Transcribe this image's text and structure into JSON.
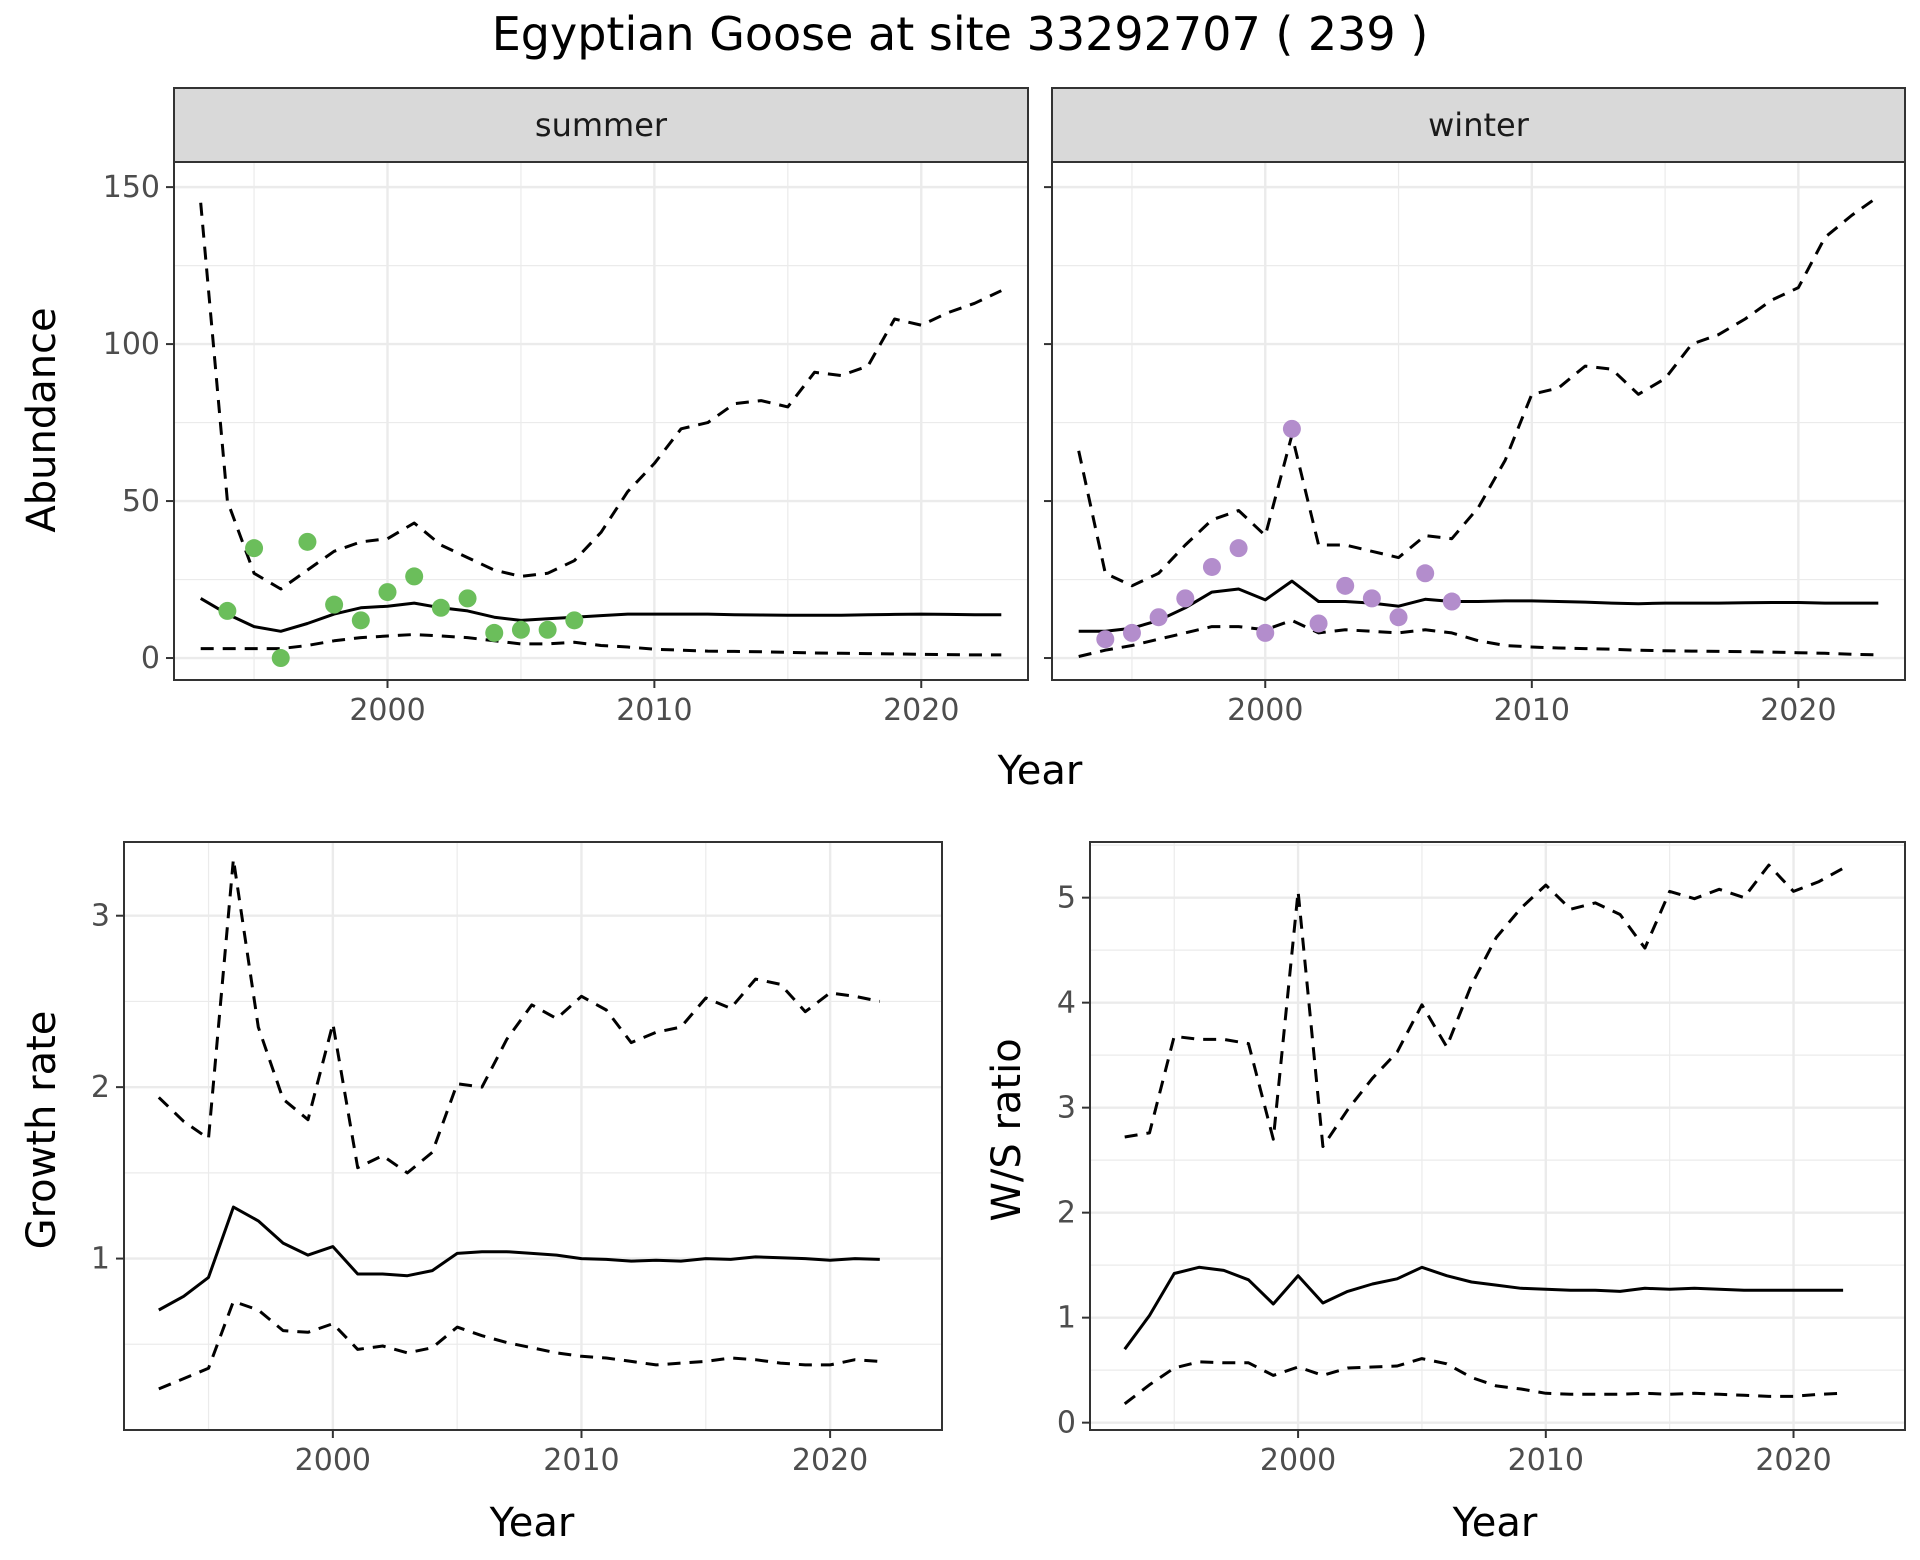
{
  "title": "Egyptian Goose at site 33292707 ( 239 )",
  "colors": {
    "summer_points": "#6BBE5B",
    "winter_points": "#B38DCC",
    "lines": "#000000",
    "grid": "#EBEBEB",
    "strip_bg": "#D9D9D9"
  },
  "chart_data": [
    {
      "type": "line",
      "facet": "summer",
      "xlabel": "Year",
      "ylabel": "Abundance",
      "xlim": [
        1992,
        2024
      ],
      "ylim": [
        -7,
        158
      ],
      "xticks": [
        2000,
        2010,
        2020
      ],
      "yticks": [
        0,
        50,
        100,
        150
      ],
      "series": [
        {
          "style": "solid",
          "x": [
            1993,
            1994,
            1995,
            1996,
            1997,
            1998,
            1999,
            2000,
            2001,
            2002,
            2003,
            2004,
            2005,
            2006,
            2007,
            2008,
            2009,
            2010,
            2011,
            2012,
            2013,
            2014,
            2015,
            2016,
            2017,
            2018,
            2019,
            2020,
            2021,
            2022,
            2023
          ],
          "values": [
            19,
            14,
            10,
            8.5,
            11,
            14,
            16,
            16.5,
            17.5,
            16,
            15,
            13,
            12,
            12.5,
            13,
            13.5,
            14,
            14,
            14,
            14,
            13.8,
            13.7,
            13.6,
            13.6,
            13.6,
            13.8,
            13.9,
            14,
            13.9,
            13.8,
            13.8
          ]
        },
        {
          "style": "dashed",
          "x": [
            1993,
            1994,
            1995,
            1996,
            1997,
            1998,
            1999,
            2000,
            2001,
            2002,
            2003,
            2004,
            2005,
            2006,
            2007,
            2008,
            2009,
            2010,
            2011,
            2012,
            2013,
            2014,
            2015,
            2016,
            2017,
            2018,
            2019,
            2020,
            2021,
            2022,
            2023
          ],
          "values": [
            145,
            50,
            27,
            22,
            28,
            34,
            37,
            38,
            43,
            36,
            32,
            28,
            26,
            27,
            31,
            40,
            53,
            62,
            73,
            75,
            81,
            82,
            80,
            91,
            90,
            93,
            108,
            106,
            110,
            113,
            117
          ]
        },
        {
          "style": "dashed",
          "x": [
            1993,
            1994,
            1995,
            1996,
            1997,
            1998,
            1999,
            2000,
            2001,
            2002,
            2003,
            2004,
            2005,
            2006,
            2007,
            2008,
            2009,
            2010,
            2011,
            2012,
            2013,
            2014,
            2015,
            2016,
            2017,
            2018,
            2019,
            2020,
            2021,
            2022,
            2023
          ],
          "values": [
            3,
            3,
            3,
            3,
            4,
            5.5,
            6.5,
            7,
            7.5,
            7,
            6.5,
            5.5,
            4.5,
            4.5,
            5,
            4,
            3.5,
            2.8,
            2.5,
            2.2,
            2.1,
            2,
            1.8,
            1.6,
            1.5,
            1.4,
            1.3,
            1.2,
            1.1,
            1,
            1
          ]
        }
      ],
      "points": {
        "x": [
          1994,
          1995,
          1996,
          1997,
          1998,
          1999,
          2000,
          2001,
          2002,
          2003,
          2004,
          2005,
          2006,
          2007
        ],
        "values": [
          15,
          35,
          0,
          37,
          17,
          12,
          21,
          26,
          16,
          19,
          8,
          9,
          9,
          12
        ]
      }
    },
    {
      "type": "line",
      "facet": "winter",
      "xlabel": "Year",
      "ylabel": "Abundance",
      "xlim": [
        1992,
        2024
      ],
      "ylim": [
        -7,
        158
      ],
      "xticks": [
        2000,
        2010,
        2020
      ],
      "yticks": [
        0,
        50,
        100,
        150
      ],
      "series": [
        {
          "style": "solid",
          "x": [
            1993,
            1994,
            1995,
            1996,
            1997,
            1998,
            1999,
            2000,
            2001,
            2002,
            2003,
            2004,
            2005,
            2006,
            2007,
            2008,
            2009,
            2010,
            2011,
            2012,
            2013,
            2014,
            2015,
            2016,
            2017,
            2018,
            2019,
            2020,
            2021,
            2022,
            2023
          ],
          "values": [
            8.5,
            8.5,
            9.5,
            12,
            16,
            21,
            22,
            18.5,
            24.5,
            18,
            18,
            17.5,
            16.5,
            18.7,
            18,
            18,
            18.2,
            18.2,
            18,
            17.8,
            17.5,
            17.3,
            17.5,
            17.5,
            17.5,
            17.6,
            17.7,
            17.7,
            17.5,
            17.5,
            17.5
          ]
        },
        {
          "style": "dashed",
          "x": [
            1993,
            1994,
            1995,
            1996,
            1997,
            1998,
            1999,
            2000,
            2001,
            2002,
            2003,
            2004,
            2005,
            2006,
            2007,
            2008,
            2009,
            2010,
            2011,
            2012,
            2013,
            2014,
            2015,
            2016,
            2017,
            2018,
            2019,
            2020,
            2021,
            2022,
            2023
          ],
          "values": [
            66,
            27,
            23,
            27,
            36,
            44,
            47,
            39,
            71,
            36,
            36,
            34,
            32,
            39,
            38,
            48,
            63,
            84,
            86,
            93,
            92,
            84,
            89,
            100,
            103,
            108,
            114,
            118,
            134,
            141,
            147
          ]
        },
        {
          "style": "dashed",
          "x": [
            1993,
            1994,
            1995,
            1996,
            1997,
            1998,
            1999,
            2000,
            2001,
            2002,
            2003,
            2004,
            2005,
            2006,
            2007,
            2008,
            2009,
            2010,
            2011,
            2012,
            2013,
            2014,
            2015,
            2016,
            2017,
            2018,
            2019,
            2020,
            2021,
            2022,
            2023
          ],
          "values": [
            0.5,
            2.5,
            4,
            6,
            8,
            10,
            10,
            9,
            12,
            8,
            9,
            8.5,
            8,
            9,
            8,
            5.5,
            4,
            3.5,
            3.2,
            3,
            2.8,
            2.5,
            2.3,
            2.2,
            2.1,
            2,
            1.9,
            1.7,
            1.5,
            1.2,
            1
          ]
        }
      ],
      "points": {
        "x": [
          1994,
          1995,
          1996,
          1997,
          1998,
          1999,
          2000,
          2001,
          2002,
          2003,
          2004,
          2005,
          2006,
          2007
        ],
        "values": [
          6,
          8,
          13,
          19,
          29,
          35,
          8,
          73,
          11,
          23,
          19,
          13,
          27,
          18
        ]
      }
    },
    {
      "type": "line",
      "xlabel": "Year",
      "ylabel": "Growth rate",
      "xlim": [
        1991.6,
        2024.5
      ],
      "ylim": [
        0.0,
        3.43
      ],
      "xticks": [
        2000,
        2010,
        2020
      ],
      "yticks": [
        1,
        2,
        3
      ],
      "series": [
        {
          "style": "solid",
          "x": [
            1993,
            1994,
            1995,
            1996,
            1997,
            1998,
            1999,
            2000,
            2001,
            2002,
            2003,
            2004,
            2005,
            2006,
            2007,
            2008,
            2009,
            2010,
            2011,
            2012,
            2013,
            2014,
            2015,
            2016,
            2017,
            2018,
            2019,
            2020,
            2021,
            2022
          ],
          "values": [
            0.7,
            0.78,
            0.89,
            1.3,
            1.22,
            1.09,
            1.02,
            1.07,
            0.91,
            0.91,
            0.9,
            0.93,
            1.03,
            1.04,
            1.04,
            1.03,
            1.02,
            1.0,
            0.995,
            0.985,
            0.99,
            0.985,
            1.0,
            0.995,
            1.01,
            1.005,
            1.0,
            0.99,
            1.0,
            0.995
          ]
        },
        {
          "style": "dashed",
          "x": [
            1993,
            1994,
            1995,
            1996,
            1997,
            1998,
            1999,
            2000,
            2001,
            2002,
            2003,
            2004,
            2005,
            2006,
            2007,
            2008,
            2009,
            2010,
            2011,
            2012,
            2013,
            2014,
            2015,
            2016,
            2017,
            2018,
            2019,
            2020,
            2021,
            2022
          ],
          "values": [
            1.94,
            1.8,
            1.7,
            3.33,
            2.35,
            1.93,
            1.81,
            2.37,
            1.53,
            1.6,
            1.5,
            1.62,
            2.02,
            2.0,
            2.28,
            2.48,
            2.4,
            2.53,
            2.45,
            2.26,
            2.32,
            2.35,
            2.52,
            2.46,
            2.63,
            2.6,
            2.44,
            2.55,
            2.53,
            2.5
          ]
        },
        {
          "style": "dashed",
          "x": [
            1993,
            1994,
            1995,
            1996,
            1997,
            1998,
            1999,
            2000,
            2001,
            2002,
            2003,
            2004,
            2005,
            2006,
            2007,
            2008,
            2009,
            2010,
            2011,
            2012,
            2013,
            2014,
            2015,
            2016,
            2017,
            2018,
            2019,
            2020,
            2021,
            2022
          ],
          "values": [
            0.24,
            0.3,
            0.36,
            0.75,
            0.7,
            0.58,
            0.57,
            0.62,
            0.47,
            0.49,
            0.45,
            0.48,
            0.6,
            0.55,
            0.51,
            0.48,
            0.45,
            0.43,
            0.42,
            0.4,
            0.38,
            0.39,
            0.4,
            0.42,
            0.41,
            0.39,
            0.38,
            0.38,
            0.41,
            0.4
          ]
        }
      ]
    },
    {
      "type": "line",
      "xlabel": "Year",
      "ylabel": "W/S ratio",
      "xlim": [
        1991.6,
        2024.5
      ],
      "ylim": [
        -0.07,
        5.53
      ],
      "xticks": [
        2000,
        2010,
        2020
      ],
      "yticks": [
        0,
        1,
        2,
        3,
        4,
        5
      ],
      "series": [
        {
          "style": "solid",
          "x": [
            1993,
            1994,
            1995,
            1996,
            1997,
            1998,
            1999,
            2000,
            2001,
            2002,
            2003,
            2004,
            2005,
            2006,
            2007,
            2008,
            2009,
            2010,
            2011,
            2012,
            2013,
            2014,
            2015,
            2016,
            2017,
            2018,
            2019,
            2020,
            2021,
            2022
          ],
          "values": [
            0.7,
            1.02,
            1.42,
            1.48,
            1.45,
            1.36,
            1.13,
            1.4,
            1.14,
            1.25,
            1.32,
            1.37,
            1.48,
            1.4,
            1.34,
            1.31,
            1.28,
            1.27,
            1.26,
            1.26,
            1.25,
            1.28,
            1.27,
            1.28,
            1.27,
            1.26,
            1.26,
            1.26,
            1.26,
            1.26
          ]
        },
        {
          "style": "dashed",
          "x": [
            1993,
            1994,
            1995,
            1996,
            1997,
            1998,
            1999,
            2000,
            2001,
            2002,
            2003,
            2004,
            2005,
            2006,
            2007,
            2008,
            2009,
            2010,
            2011,
            2012,
            2013,
            2014,
            2015,
            2016,
            2017,
            2018,
            2019,
            2020,
            2021,
            2022
          ],
          "values": [
            2.72,
            2.76,
            3.68,
            3.65,
            3.65,
            3.61,
            2.7,
            5.06,
            2.63,
            2.98,
            3.28,
            3.53,
            3.98,
            3.58,
            4.17,
            4.62,
            4.9,
            5.12,
            4.89,
            4.95,
            4.84,
            4.52,
            5.06,
            4.99,
            5.08,
            5.0,
            5.31,
            5.06,
            5.15,
            5.28
          ]
        },
        {
          "style": "dashed",
          "x": [
            1993,
            1994,
            1995,
            1996,
            1997,
            1998,
            1999,
            2000,
            2001,
            2002,
            2003,
            2004,
            2005,
            2006,
            2007,
            2008,
            2009,
            2010,
            2011,
            2012,
            2013,
            2014,
            2015,
            2016,
            2017,
            2018,
            2019,
            2020,
            2021,
            2022
          ],
          "values": [
            0.18,
            0.36,
            0.52,
            0.58,
            0.57,
            0.57,
            0.45,
            0.53,
            0.45,
            0.52,
            0.53,
            0.54,
            0.61,
            0.56,
            0.43,
            0.35,
            0.32,
            0.28,
            0.27,
            0.27,
            0.27,
            0.28,
            0.27,
            0.28,
            0.27,
            0.26,
            0.25,
            0.25,
            0.27,
            0.28
          ]
        }
      ]
    }
  ]
}
